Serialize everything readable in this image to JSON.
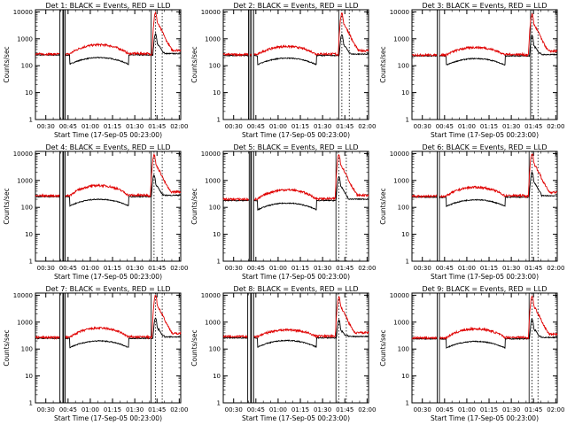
{
  "chart_data": {
    "type": "line",
    "grid": false,
    "x_ticks": [
      "00:30",
      "00:45",
      "01:00",
      "01:15",
      "01:30",
      "01:45",
      "02:00"
    ],
    "x_tick_minutes": [
      30,
      45,
      60,
      75,
      90,
      105,
      120
    ],
    "xlim_minutes": [
      23,
      121
    ],
    "xlabel": "Start Time (17-Sep-05 00:23:00)",
    "ylabel": "Counts/sec",
    "yscale": "log",
    "ylim": [
      1,
      12000
    ],
    "y_ticks": [
      "1",
      "10",
      "100",
      "1000",
      "10000"
    ],
    "y_tick_values": [
      1,
      10,
      100,
      1000,
      10000
    ],
    "series_names": [
      "Events",
      "LLD"
    ],
    "colors": {
      "Events": "#000000",
      "LLD": "#e00000"
    },
    "panels": [
      {
        "detector": 1,
        "title": "Det 1: BLACK = Events, RED = LLD",
        "events_base": 250,
        "lld_base": 270,
        "hump_peak": 600,
        "lld_flare_peak": 9000,
        "events_flare_peak": 1500,
        "gaps": [
          [
            39.5,
            41.5
          ],
          [
            42.0,
            43.0
          ]
        ],
        "vlines_dotted": [
          104,
          108.5
        ],
        "vline_solid": 101
      },
      {
        "detector": 2,
        "title": "Det 2: BLACK = Events, RED = LLD",
        "events_base": 240,
        "lld_base": 260,
        "hump_peak": 520,
        "lld_flare_peak": 8500,
        "events_flare_peak": 1400,
        "gaps": [
          [
            40.0,
            41.0
          ],
          [
            42.0,
            43.5
          ]
        ],
        "vlines_dotted": [
          103,
          108
        ],
        "vline_solid": 101
      },
      {
        "detector": 3,
        "title": "Det 3: BLACK = Events, RED = LLD",
        "events_base": 230,
        "lld_base": 250,
        "hump_peak": 480,
        "lld_flare_peak": 8000,
        "events_flare_peak": 1300,
        "gaps": [
          [
            40.0,
            41.5
          ]
        ],
        "vlines_dotted": [
          104,
          108
        ],
        "vline_solid": 103
      },
      {
        "detector": 4,
        "title": "Det 4: BLACK = Events, RED = LLD",
        "events_base": 250,
        "lld_base": 270,
        "hump_peak": 650,
        "lld_flare_peak": 9000,
        "events_flare_peak": 1600,
        "gaps": [
          [
            39.5,
            41.5
          ],
          [
            42.0,
            43.0
          ]
        ],
        "vlines_dotted": [
          103,
          108.5
        ],
        "vline_solid": 101
      },
      {
        "detector": 5,
        "title": "Det 5: BLACK = Events, RED = LLD",
        "events_base": 180,
        "lld_base": 200,
        "hump_peak": 450,
        "lld_flare_peak": 9000,
        "events_flare_peak": 1400,
        "gaps": [
          [
            40.5,
            41.5
          ],
          [
            42.0,
            43.5
          ]
        ],
        "vlines_dotted": [
          101,
          106
        ],
        "vline_solid": 99
      },
      {
        "detector": 6,
        "title": "Det 6: BLACK = Events, RED = LLD",
        "events_base": 240,
        "lld_base": 260,
        "hump_peak": 560,
        "lld_flare_peak": 10000,
        "events_flare_peak": 2000,
        "gaps": [
          [
            40.0,
            41.5
          ]
        ],
        "vlines_dotted": [
          104,
          108
        ],
        "vline_solid": 102
      },
      {
        "detector": 7,
        "title": "Det 7: BLACK = Events, RED = LLD",
        "events_base": 250,
        "lld_base": 270,
        "hump_peak": 600,
        "lld_flare_peak": 9500,
        "events_flare_peak": 1400,
        "gaps": [
          [
            39.5,
            41.5
          ],
          [
            42.0,
            43.0
          ]
        ],
        "vlines_dotted": [
          104,
          108.5
        ],
        "vline_solid": 101
      },
      {
        "detector": 8,
        "title": "Det 8: BLACK = Events, RED = LLD",
        "events_base": 260,
        "lld_base": 290,
        "hump_peak": 520,
        "lld_flare_peak": 8500,
        "events_flare_peak": 1200,
        "gaps": [
          [
            39.5,
            41.5
          ],
          [
            42.0,
            43.5
          ]
        ],
        "vlines_dotted": [
          101,
          106
        ],
        "vline_solid": 99
      },
      {
        "detector": 9,
        "title": "Det 9: BLACK = Events, RED = LLD",
        "events_base": 240,
        "lld_base": 260,
        "hump_peak": 560,
        "lld_flare_peak": 9000,
        "events_flare_peak": 1300,
        "gaps": [
          [
            40.0,
            41.5
          ]
        ],
        "vlines_dotted": [
          104,
          108
        ],
        "vline_solid": 102
      }
    ]
  }
}
